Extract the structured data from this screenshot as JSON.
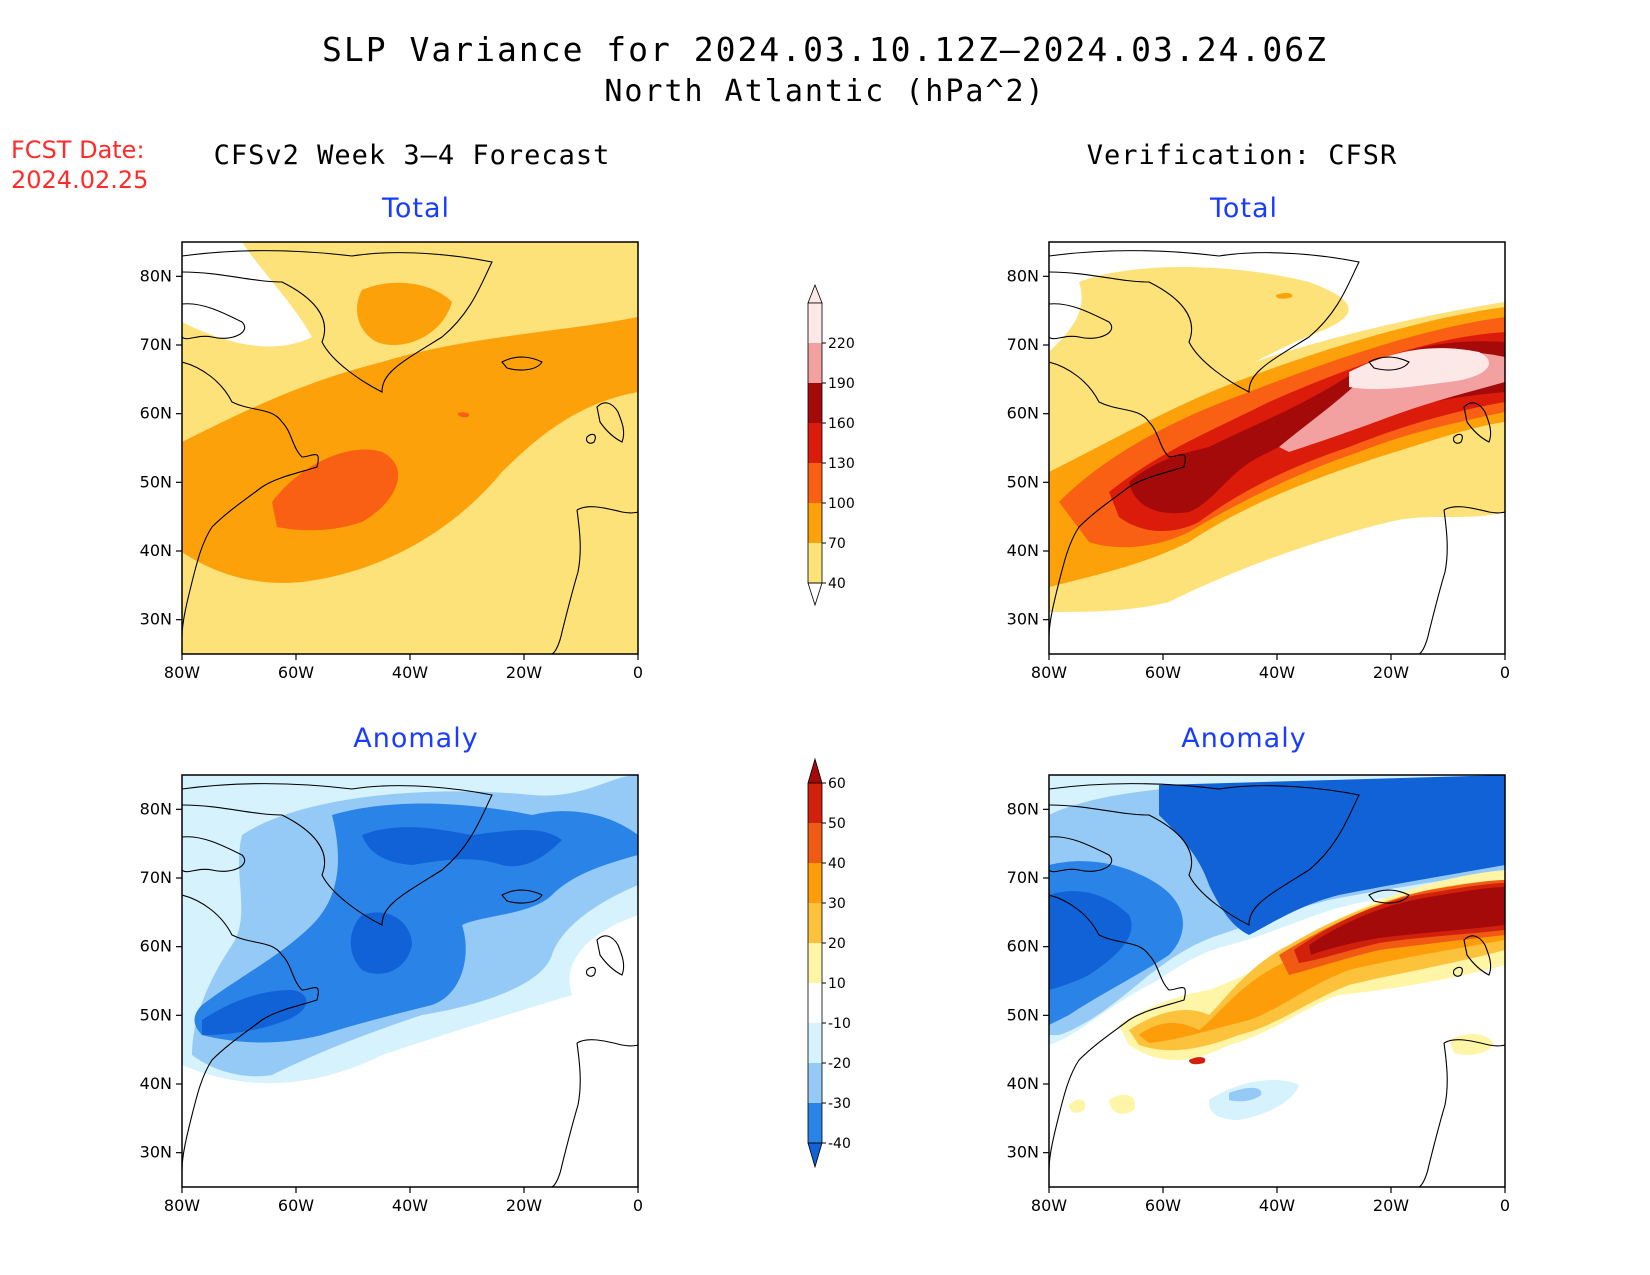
{
  "title": {
    "line1": "SLP Variance for 2024.03.10.12Z–2024.03.24.06Z",
    "line2": "North Atlantic (hPa^2)"
  },
  "fcst_date": {
    "line1": "FCST Date:",
    "line2": "2024.02.25"
  },
  "columns": {
    "left": "CFSv2 Week 3–4 Forecast",
    "right": "Verification: CFSR"
  },
  "panels": {
    "forecast_total": "Total",
    "forecast_anomaly": "Anomaly",
    "verification_total": "Total",
    "verification_anomaly": "Anomaly"
  },
  "axes": {
    "lat_labels": [
      "80N",
      "70N",
      "60N",
      "50N",
      "40N",
      "30N"
    ],
    "lon_labels": [
      "80W",
      "60W",
      "40W",
      "20W",
      "0"
    ]
  },
  "colorbar_total": {
    "levels": [
      "40",
      "70",
      "100",
      "130",
      "160",
      "190",
      "220"
    ],
    "colors": [
      "#fde27a",
      "#fda10a",
      "#f96013",
      "#dc1c0b",
      "#a50a0a",
      "#f2a0a0",
      "#fde8e8"
    ]
  },
  "colorbar_anomaly": {
    "levels": [
      "-40",
      "-30",
      "-20",
      "-10",
      "10",
      "20",
      "30",
      "40",
      "50",
      "60"
    ],
    "colors": [
      "#1062d6",
      "#2a84e8",
      "#96caf6",
      "#d6f2fc",
      "#ffffff",
      "#fef5a6",
      "#fdc23c",
      "#fd9d0a",
      "#f05a12",
      "#d1200c",
      "#a50a0a"
    ]
  },
  "chart_data": [
    {
      "type": "heatmap",
      "panel": "CFSv2 Week 3–4 Forecast / Total",
      "description_units": "hPa^2",
      "region": {
        "lon": [
          -80,
          0
        ],
        "lat": [
          25,
          85
        ]
      },
      "levels": [
        40,
        70,
        100,
        130,
        160,
        190,
        220
      ]
    },
    {
      "type": "heatmap",
      "panel": "Verification: CFSR / Total",
      "region": {
        "lon": [
          -80,
          0
        ],
        "lat": [
          25,
          85
        ]
      },
      "levels": [
        40,
        70,
        100,
        130,
        160,
        190,
        220
      ]
    },
    {
      "type": "heatmap",
      "panel": "CFSv2 Week 3–4 Forecast / Anomaly",
      "region": {
        "lon": [
          -80,
          0
        ],
        "lat": [
          25,
          85
        ]
      },
      "levels": [
        -40,
        -30,
        -20,
        -10,
        10,
        20,
        30,
        40,
        50,
        60
      ]
    },
    {
      "type": "heatmap",
      "panel": "Verification: CFSR / Anomaly",
      "region": {
        "lon": [
          -80,
          0
        ],
        "lat": [
          25,
          85
        ]
      },
      "levels": [
        -40,
        -30,
        -20,
        -10,
        10,
        20,
        30,
        40,
        50,
        60
      ]
    }
  ]
}
